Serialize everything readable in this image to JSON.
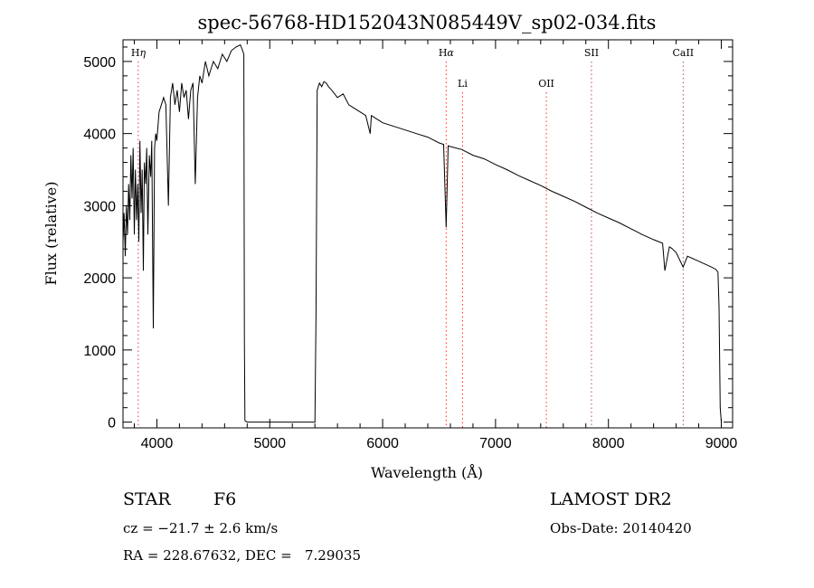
{
  "chart_data": {
    "type": "line",
    "title": "spec-56768-HD152043N085449V_sp02-034.fits",
    "xlabel": "Wavelength (Å)",
    "ylabel": "Flux (relative)",
    "xlim": [
      3700,
      9100
    ],
    "ylim": [
      -80,
      5300
    ],
    "x_ticks": [
      4000,
      5000,
      6000,
      7000,
      8000,
      9000
    ],
    "y_ticks": [
      0,
      1000,
      2000,
      3000,
      4000,
      5000
    ],
    "grid": false,
    "series": [
      {
        "x": [
          3700,
          3710,
          3720,
          3730,
          3740,
          3750,
          3760,
          3770,
          3780,
          3790,
          3800,
          3810,
          3820,
          3830,
          3840,
          3850,
          3860,
          3870,
          3880,
          3889,
          3900,
          3910,
          3920,
          3933,
          3945,
          3955,
          3968,
          3980,
          3990,
          4000,
          4020,
          4040,
          4060,
          4080,
          4102,
          4120,
          4140,
          4160,
          4180,
          4200,
          4220,
          4240,
          4260,
          4280,
          4300,
          4320,
          4340,
          4360,
          4380,
          4400,
          4430,
          4460,
          4500,
          4540,
          4580,
          4620,
          4660,
          4700,
          4740,
          4760,
          4770,
          4775,
          4780,
          4800,
          5000,
          5200,
          5400,
          5410,
          5420,
          5440,
          5460,
          5480,
          5500,
          5520,
          5550,
          5600,
          5650,
          5700,
          5750,
          5800,
          5850,
          5890,
          5900,
          5950,
          6000,
          6100,
          6200,
          6300,
          6400,
          6500,
          6540,
          6563,
          6580,
          6600,
          6700,
          6800,
          6900,
          7000,
          7100,
          7200,
          7300,
          7400,
          7500,
          7600,
          7700,
          7800,
          7900,
          8000,
          8100,
          8200,
          8300,
          8400,
          8480,
          8500,
          8540,
          8560,
          8600,
          8662,
          8700,
          8800,
          8900,
          8950,
          8970,
          8980,
          8990,
          9000
        ],
        "y": [
          2500,
          2900,
          2300,
          3000,
          2600,
          3300,
          2800,
          3700,
          3100,
          3800,
          2600,
          3500,
          2800,
          3300,
          2500,
          3900,
          2900,
          3500,
          2100,
          3600,
          3300,
          3800,
          2600,
          3700,
          3400,
          3900,
          1300,
          3800,
          4000,
          3900,
          4300,
          4400,
          4500,
          4400,
          3000,
          4500,
          4700,
          4400,
          4600,
          4300,
          4700,
          4500,
          4600,
          4200,
          4600,
          4700,
          3300,
          4500,
          4800,
          4700,
          5000,
          4800,
          5000,
          4900,
          5100,
          5000,
          5150,
          5200,
          5230,
          5150,
          5100,
          1200,
          20,
          0,
          0,
          0,
          0,
          1500,
          4600,
          4700,
          4650,
          4720,
          4700,
          4650,
          4600,
          4500,
          4550,
          4400,
          4350,
          4300,
          4250,
          4000,
          4250,
          4200,
          4150,
          4100,
          4050,
          4000,
          3950,
          3870,
          3850,
          2700,
          3830,
          3820,
          3780,
          3700,
          3650,
          3570,
          3500,
          3420,
          3350,
          3280,
          3200,
          3130,
          3060,
          2980,
          2900,
          2830,
          2760,
          2680,
          2600,
          2530,
          2480,
          2100,
          2430,
          2410,
          2350,
          2150,
          2300,
          2230,
          2160,
          2120,
          2080,
          1600,
          200,
          0
        ]
      }
    ],
    "line_markers": [
      {
        "label": "H",
        "greek": "η",
        "wavelength": 3835,
        "label_row": "upper",
        "color": "#d64040"
      },
      {
        "label": "H",
        "greek": "α",
        "wavelength": 6563,
        "label_row": "upper",
        "color": "#d64040"
      },
      {
        "label": "Li",
        "greek": "",
        "wavelength": 6708,
        "label_row": "lower",
        "color": "#d64040"
      },
      {
        "label": "OII",
        "greek": "",
        "wavelength": 7450,
        "label_row": "lower",
        "color": "#d64040"
      },
      {
        "label": "SII",
        "greek": "",
        "wavelength": 7850,
        "label_row": "upper",
        "color": "#d64040"
      },
      {
        "label": "CaII",
        "greek": "",
        "wavelength": 8662,
        "label_row": "upper",
        "color": "#d64040"
      }
    ]
  },
  "info": {
    "class_label": "STAR",
    "subclass": "F6",
    "survey": "LAMOST DR2",
    "cz": "cz = −21.7 ± 2.6 km/s",
    "obs_date": "Obs-Date: 20140420",
    "radec": "RA = 228.67632, DEC =   7.29035"
  }
}
